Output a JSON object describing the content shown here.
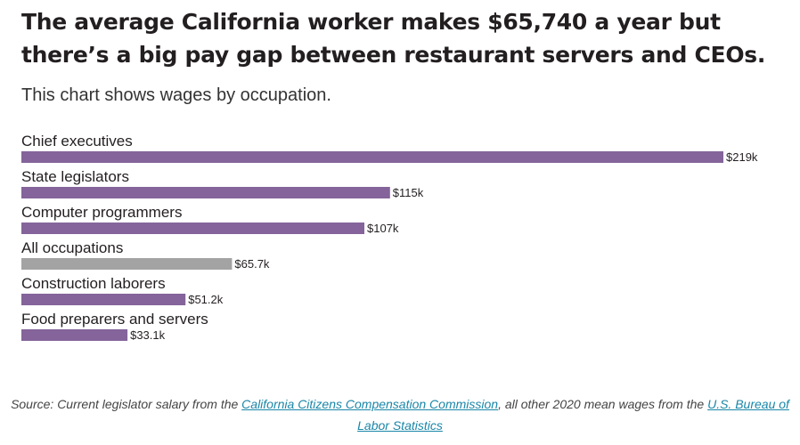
{
  "chart_data": {
    "type": "bar",
    "orientation": "horizontal",
    "title": "The average California worker makes $65,740 a year but there’s a big pay gap between restaurant servers and CEOs.",
    "subtitle": "This chart shows wages by occupation.",
    "categories": [
      "Chief executives",
      "State legislators",
      "Computer programmers",
      "All occupations",
      "Construction laborers",
      "Food preparers and servers"
    ],
    "values": [
      219,
      115,
      107,
      65.7,
      51.2,
      33.1
    ],
    "value_labels": [
      "$219k",
      "$115k",
      "$107k",
      "$65.7k",
      "$51.2k",
      "$33.1k"
    ],
    "unit": "thousand dollars per year",
    "colors": [
      "#84649a",
      "#84649a",
      "#84649a",
      "#a3a3a3",
      "#84649a",
      "#84649a"
    ],
    "xlim": [
      0,
      219
    ],
    "grid": false,
    "legend": "none"
  },
  "source": {
    "prefix": "Source: Current legislator salary from the",
    "link1": "California Citizens Compensation Commission",
    "middle": ", all other 2020 mean wages from the",
    "link2": "U.S. Bureau of Labor Statistics"
  }
}
